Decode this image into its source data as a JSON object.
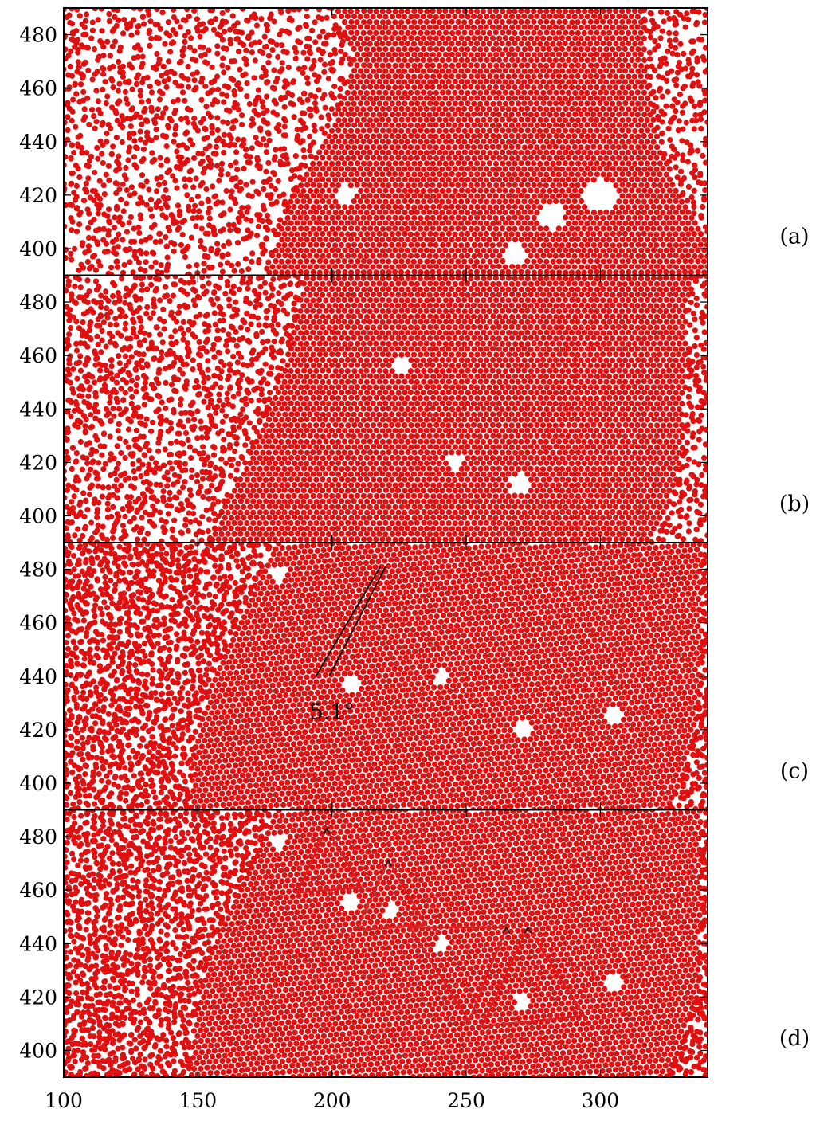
{
  "chart_data": {
    "type": "scatter",
    "xlim": [
      100,
      340
    ],
    "ylim": [
      390,
      490
    ],
    "x_ticks": [
      100,
      150,
      200,
      250,
      300
    ],
    "y_ticks": [
      400,
      420,
      440,
      460,
      480
    ],
    "grid": false,
    "legend": "none",
    "point_color": "#e01010",
    "line_color": "#d42020",
    "lattice_spacing": 2.35,
    "panels": [
      {
        "label": "(a)",
        "crystal": [
          [
            222,
            390
          ],
          [
            340,
            390
          ],
          [
            340,
            405
          ],
          [
            330,
            420
          ],
          [
            322,
            440
          ],
          [
            318,
            458
          ],
          [
            316,
            490
          ],
          [
            201,
            490
          ],
          [
            208,
            472
          ],
          [
            205,
            460
          ],
          [
            200,
            448
          ],
          [
            190,
            430
          ],
          [
            182,
            412
          ],
          [
            178,
            400
          ],
          [
            175,
            390
          ]
        ],
        "voids": [
          [
            205,
            420,
            4
          ],
          [
            282,
            412,
            5
          ],
          [
            300,
            420,
            6
          ],
          [
            268,
            398,
            4
          ]
        ],
        "gas_points": 1500
      },
      {
        "label": "(b)",
        "crystal": [
          [
            155,
            390
          ],
          [
            318,
            390
          ],
          [
            325,
            400
          ],
          [
            330,
            420
          ],
          [
            331,
            440
          ],
          [
            333,
            460
          ],
          [
            332,
            478
          ],
          [
            336,
            490
          ],
          [
            190,
            490
          ],
          [
            187,
            476
          ],
          [
            182,
            456
          ],
          [
            176,
            440
          ],
          [
            168,
            420
          ],
          [
            160,
            405
          ]
        ],
        "voids": [
          [
            226,
            456,
            3
          ],
          [
            246,
            420,
            3
          ],
          [
            270,
            412,
            4
          ]
        ],
        "gas_points": 1400
      },
      {
        "label": "(c)",
        "crystal": [
          [
            147,
            390
          ],
          [
            325,
            390
          ],
          [
            330,
            400
          ],
          [
            336,
            420
          ],
          [
            338,
            450
          ],
          [
            338,
            490
          ],
          [
            178,
            490
          ],
          [
            173,
            476
          ],
          [
            165,
            460
          ],
          [
            155,
            440
          ],
          [
            150,
            420
          ],
          [
            147,
            400
          ]
        ],
        "voids": [
          [
            207,
            437,
            3
          ],
          [
            241,
            440,
            3
          ],
          [
            271,
            420,
            3
          ],
          [
            305,
            425,
            3
          ],
          [
            180,
            478,
            3
          ]
        ],
        "gas_points": 1500,
        "lines": [
          [
            [
              194,
              440
            ],
            [
              218,
              481
            ]
          ],
          [
            [
              199,
              440
            ],
            [
              220,
              481
            ]
          ]
        ],
        "annotation": {
          "text": "5.1°",
          "x": 200,
          "y": 424
        }
      },
      {
        "label": "(d)",
        "crystal": [
          [
            147,
            390
          ],
          [
            325,
            390
          ],
          [
            330,
            400
          ],
          [
            336,
            420
          ],
          [
            338,
            450
          ],
          [
            338,
            490
          ],
          [
            178,
            490
          ],
          [
            173,
            476
          ],
          [
            165,
            460
          ],
          [
            155,
            440
          ],
          [
            150,
            420
          ],
          [
            147,
            400
          ]
        ],
        "voids": [
          [
            207,
            455,
            3
          ],
          [
            222,
            452,
            3
          ],
          [
            241,
            440,
            3
          ],
          [
            271,
            418,
            3
          ],
          [
            305,
            425,
            3
          ],
          [
            180,
            478,
            3
          ]
        ],
        "gas_points": 1500,
        "triangles": [
          [
            [
              187,
              459
            ],
            [
              198,
              483
            ],
            [
              211,
              461
            ]
          ],
          [
            [
              209,
              445
            ],
            [
              221,
              471
            ],
            [
              235,
              447
            ]
          ],
          [
            [
              229,
              446
            ],
            [
              265,
              446
            ],
            [
              251,
              411
            ]
          ],
          [
            [
              256,
              409
            ],
            [
              273,
              446
            ],
            [
              294,
              413
            ]
          ]
        ]
      }
    ]
  }
}
